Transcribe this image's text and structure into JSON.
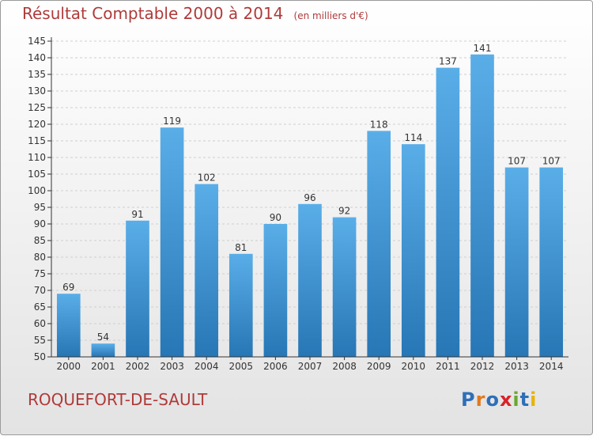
{
  "title": "Résultat Comptable 2000 à 2014",
  "unit_note": "(en milliers d'€)",
  "commune": "ROQUEFORT-DE-SAULT",
  "logo_text": "Proxiti",
  "colors": {
    "title": "#b03a3a",
    "bar_top": "#5aaee8",
    "bar_bottom": "#2776b5",
    "axis": "#333333",
    "grid": "#cfcfcf"
  },
  "chart_data": {
    "type": "bar",
    "title": "Résultat Comptable 2000 à 2014",
    "categories": [
      "2000",
      "2001",
      "2002",
      "2003",
      "2004",
      "2005",
      "2006",
      "2007",
      "2008",
      "2009",
      "2010",
      "2011",
      "2012",
      "2013",
      "2014"
    ],
    "values": [
      69,
      54,
      91,
      119,
      102,
      81,
      90,
      96,
      92,
      118,
      114,
      137,
      141,
      107,
      107
    ],
    "ylim": [
      50,
      145
    ],
    "ytick_step": 5,
    "grid": "horizontal dashed",
    "data_labels": true
  }
}
